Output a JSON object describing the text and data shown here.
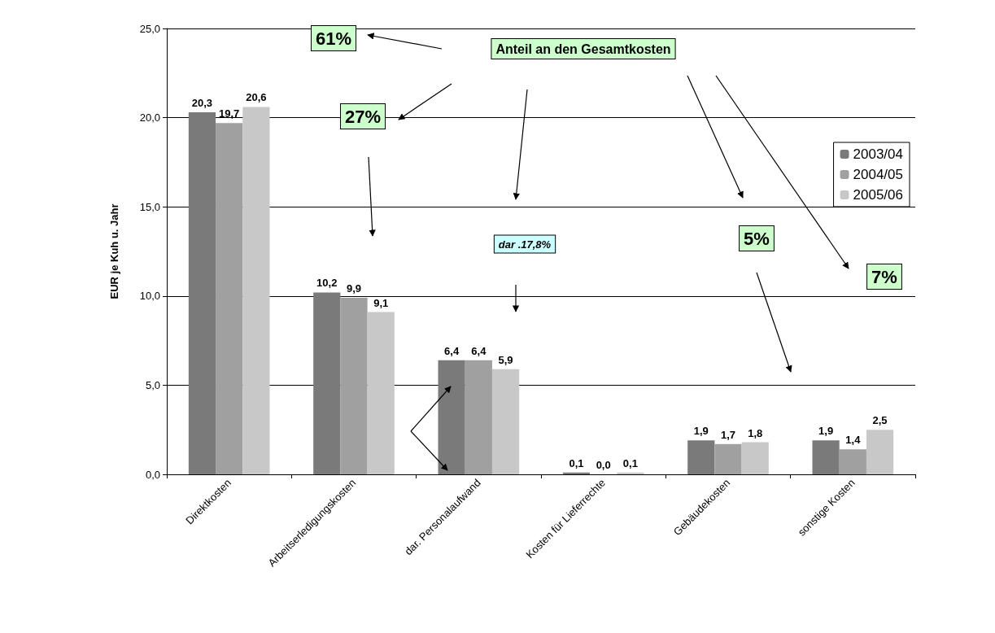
{
  "chart_data": {
    "type": "bar",
    "ylabel": "EUR je Kuh u. Jahr",
    "categories": [
      "Direktkosten",
      "Arbeitserledigungskosten",
      "dar. Personalaufwand",
      "Kosten für Lieferrechte",
      "Gebäudekosten",
      "sonstige Kosten"
    ],
    "series": [
      {
        "name": "2003/04",
        "color": "#7a7a7a",
        "values": [
          20.3,
          10.2,
          6.4,
          0.1,
          1.9,
          1.9
        ],
        "value_labels": [
          "20,3",
          "10,2",
          "6,4",
          "0,1",
          "1,9",
          "1,9"
        ]
      },
      {
        "name": "2004/05",
        "color": "#a0a0a0",
        "values": [
          19.7,
          9.9,
          6.4,
          0.0,
          1.7,
          1.4
        ],
        "value_labels": [
          "19,7",
          "9,9",
          "6,4",
          "0,0",
          "1,7",
          "1,4"
        ]
      },
      {
        "name": "2005/06",
        "color": "#c8c8c8",
        "values": [
          20.6,
          9.1,
          5.9,
          0.1,
          1.8,
          2.5
        ],
        "value_labels": [
          "20,6",
          "9,1",
          "5,9",
          "0,1",
          "1,8",
          "2,5"
        ]
      }
    ],
    "ylim": [
      0,
      25
    ],
    "yticks": [
      {
        "value": 0,
        "label": "0,0"
      },
      {
        "value": 5,
        "label": "5,0"
      },
      {
        "value": 10,
        "label": "10,0"
      },
      {
        "value": 15,
        "label": "15,0"
      },
      {
        "value": 20,
        "label": "20,0"
      },
      {
        "value": 25,
        "label": "25,0"
      }
    ],
    "grid": "y",
    "legend": "top right",
    "annotations": [
      "61%",
      "Anteil an den Gesamtkosten",
      "27%",
      "dar .17,8%",
      "5%",
      "7%"
    ]
  }
}
